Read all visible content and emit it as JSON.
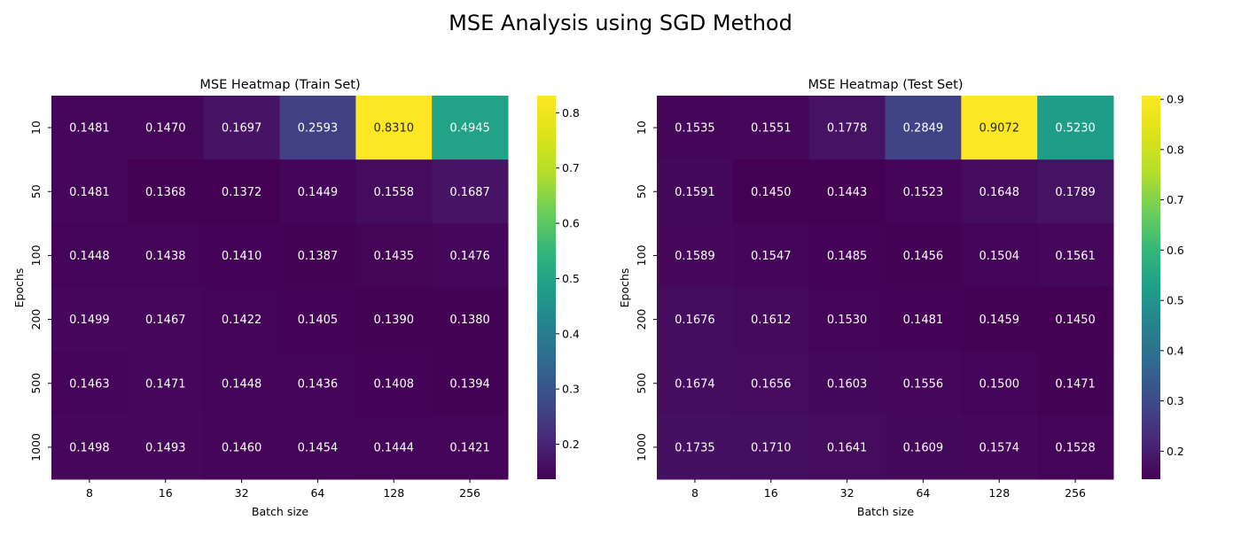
{
  "title": "MSE Analysis using SGD Method",
  "chart_data": [
    {
      "type": "heatmap",
      "title": "MSE Heatmap (Train Set)",
      "xlabel": "Batch size",
      "ylabel": "Epochs",
      "x_categories": [
        "8",
        "16",
        "32",
        "64",
        "128",
        "256"
      ],
      "y_categories": [
        "10",
        "50",
        "100",
        "200",
        "500",
        "1000"
      ],
      "values": [
        [
          0.1481,
          0.147,
          0.1697,
          0.2593,
          0.831,
          0.4945
        ],
        [
          0.1481,
          0.1368,
          0.1372,
          0.1449,
          0.1558,
          0.1687
        ],
        [
          0.1448,
          0.1438,
          0.141,
          0.1387,
          0.1435,
          0.1476
        ],
        [
          0.1499,
          0.1467,
          0.1422,
          0.1405,
          0.139,
          0.138
        ],
        [
          0.1463,
          0.1471,
          0.1448,
          0.1436,
          0.1408,
          0.1394
        ],
        [
          0.1498,
          0.1493,
          0.146,
          0.1454,
          0.1444,
          0.1421
        ]
      ],
      "value_labels": [
        [
          "0.1481",
          "0.1470",
          "0.1697",
          "0.2593",
          "0.8310",
          "0.4945"
        ],
        [
          "0.1481",
          "0.1368",
          "0.1372",
          "0.1449",
          "0.1558",
          "0.1687"
        ],
        [
          "0.1448",
          "0.1438",
          "0.1410",
          "0.1387",
          "0.1435",
          "0.1476"
        ],
        [
          "0.1499",
          "0.1467",
          "0.1422",
          "0.1405",
          "0.1390",
          "0.1380"
        ],
        [
          "0.1463",
          "0.1471",
          "0.1448",
          "0.1436",
          "0.1408",
          "0.1394"
        ],
        [
          "0.1498",
          "0.1493",
          "0.1460",
          "0.1454",
          "0.1444",
          "0.1421"
        ]
      ],
      "colormap": "viridis",
      "colorbar_range": [
        0.1368,
        0.831
      ],
      "colorbar_ticks": [
        0.2,
        0.3,
        0.4,
        0.5,
        0.6,
        0.7,
        0.8
      ],
      "colorbar_tick_labels": [
        "0.2",
        "0.3",
        "0.4",
        "0.5",
        "0.6",
        "0.7",
        "0.8"
      ]
    },
    {
      "type": "heatmap",
      "title": "MSE Heatmap (Test Set)",
      "xlabel": "Batch size",
      "ylabel": "Epochs",
      "x_categories": [
        "8",
        "16",
        "32",
        "64",
        "128",
        "256"
      ],
      "y_categories": [
        "10",
        "50",
        "100",
        "200",
        "500",
        "1000"
      ],
      "values": [
        [
          0.1535,
          0.1551,
          0.1778,
          0.2849,
          0.9072,
          0.523
        ],
        [
          0.1591,
          0.145,
          0.1443,
          0.1523,
          0.1648,
          0.1789
        ],
        [
          0.1589,
          0.1547,
          0.1485,
          0.1456,
          0.1504,
          0.1561
        ],
        [
          0.1676,
          0.1612,
          0.153,
          0.1481,
          0.1459,
          0.145
        ],
        [
          0.1674,
          0.1656,
          0.1603,
          0.1556,
          0.15,
          0.1471
        ],
        [
          0.1735,
          0.171,
          0.1641,
          0.1609,
          0.1574,
          0.1528
        ]
      ],
      "value_labels": [
        [
          "0.1535",
          "0.1551",
          "0.1778",
          "0.2849",
          "0.9072",
          "0.5230"
        ],
        [
          "0.1591",
          "0.1450",
          "0.1443",
          "0.1523",
          "0.1648",
          "0.1789"
        ],
        [
          "0.1589",
          "0.1547",
          "0.1485",
          "0.1456",
          "0.1504",
          "0.1561"
        ],
        [
          "0.1676",
          "0.1612",
          "0.1530",
          "0.1481",
          "0.1459",
          "0.1450"
        ],
        [
          "0.1674",
          "0.1656",
          "0.1603",
          "0.1556",
          "0.1500",
          "0.1471"
        ],
        [
          "0.1735",
          "0.1710",
          "0.1641",
          "0.1609",
          "0.1574",
          "0.1528"
        ]
      ],
      "colormap": "viridis",
      "colorbar_range": [
        0.1443,
        0.9072
      ],
      "colorbar_ticks": [
        0.2,
        0.3,
        0.4,
        0.5,
        0.6,
        0.7,
        0.8,
        0.9
      ],
      "colorbar_tick_labels": [
        "0.2",
        "0.3",
        "0.4",
        "0.5",
        "0.6",
        "0.7",
        "0.8",
        "0.9"
      ]
    }
  ]
}
